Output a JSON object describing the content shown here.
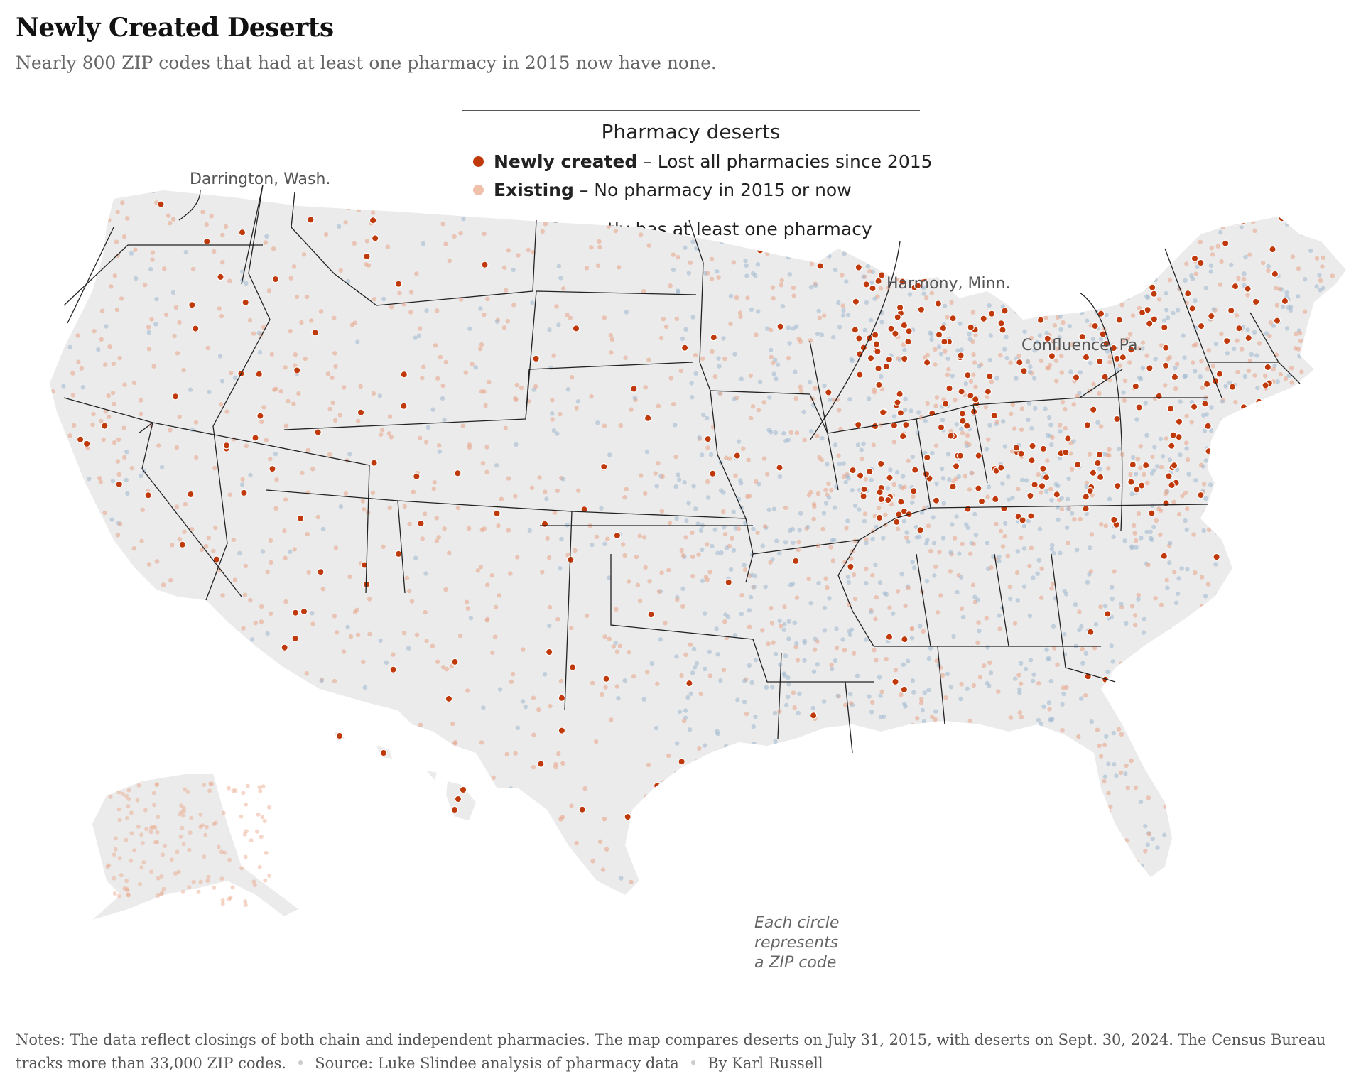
{
  "title": "Newly Created Deserts",
  "subtitle": "Nearly 800 ZIP codes that had at least one pharmacy in 2015 now have none.",
  "legend": {
    "heading": "Pharmacy deserts",
    "items": [
      {
        "bold": "Newly created",
        "text": " – Lost all pharmacies since 2015",
        "color": "#c0390b"
      },
      {
        "bold": "Existing",
        "text": " – No pharmacy in 2015 or now",
        "color": "#f0c0aa"
      },
      {
        "bold": "",
        "text": "Currently has at least one pharmacy",
        "color": "#a9bfd3"
      }
    ]
  },
  "annotations": {
    "darrington": "Darrington, Wash.",
    "harmony": "Harmony, Minn.",
    "confluence": "Confluence, Pa.",
    "circle_note": [
      "Each circle",
      "represents",
      "a ZIP code"
    ]
  },
  "colors": {
    "land": "#ebebeb",
    "newly_created": "#c0390b",
    "existing": "#e8a386",
    "has_pharmacy": "#9fb8cf",
    "border": "#222222"
  },
  "footer": {
    "notes": "Notes: The data reflect closings of both chain and independent pharmacies. The map compares deserts on July 31, 2015, with deserts on Sept. 30, 2024. The Census Bureau tracks more than 33,000 ZIP codes.",
    "source": "Source: Luke Slindee analysis of pharmacy data",
    "byline": "By Karl Russell"
  }
}
